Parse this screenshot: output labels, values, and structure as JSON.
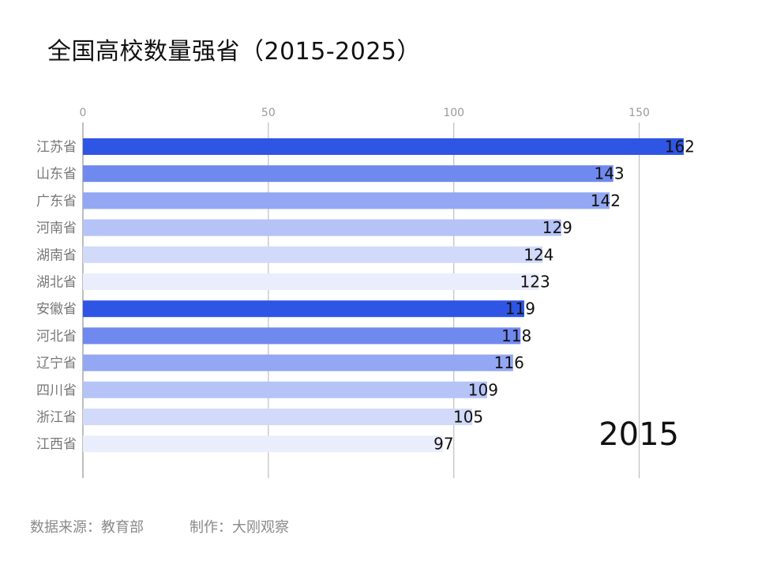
{
  "title": "全国高校数量强省（2015-2025）",
  "footer": {
    "source": "数据来源：教育部",
    "credit": "制作：大刚观察"
  },
  "chart_data": {
    "type": "bar",
    "orientation": "horizontal",
    "year": "2015",
    "categories": [
      "江苏省",
      "山东省",
      "广东省",
      "河南省",
      "湖南省",
      "湖北省",
      "安徽省",
      "河北省",
      "辽宁省",
      "四川省",
      "浙江省",
      "江西省"
    ],
    "values": [
      162,
      143,
      142,
      129,
      124,
      123,
      119,
      118,
      116,
      109,
      105,
      97
    ],
    "xlim": [
      0,
      162
    ],
    "xticks": [
      0,
      50,
      100,
      150
    ],
    "grid": true,
    "colors": [
      "#2f55e4",
      "#6f89ef",
      "#93a7f3",
      "#b5c3f7",
      "#d2daf9",
      "#e9edfc"
    ]
  }
}
